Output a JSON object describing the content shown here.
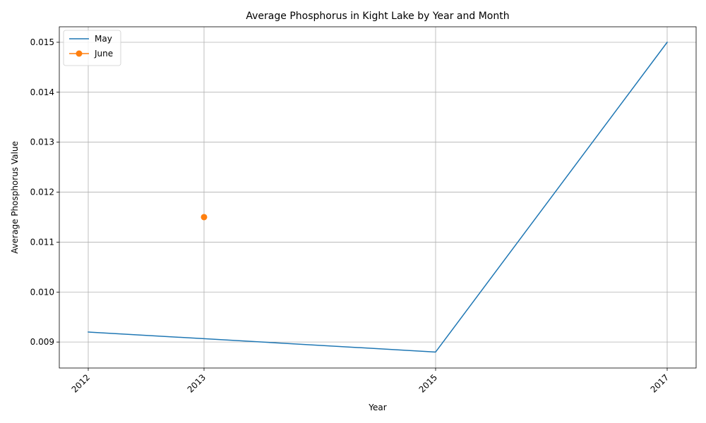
{
  "chart_data": {
    "type": "line",
    "title": "Average Phosphorus in Kight Lake by Year and Month",
    "xlabel": "Year",
    "ylabel": "Average Phosphorus Value",
    "x_ticks": [
      "2012",
      "2013",
      "2015",
      "2017"
    ],
    "y_ticks": [
      "0.009",
      "0.010",
      "0.011",
      "0.012",
      "0.013",
      "0.014",
      "0.015"
    ],
    "xlim": [
      2011.75,
      2017.25
    ],
    "ylim": [
      0.00848,
      0.01531
    ],
    "grid": true,
    "legend_position": "top-left",
    "series": [
      {
        "name": "May",
        "color": "#1f77b4",
        "marker": "none",
        "points": [
          {
            "x": 2012,
            "y": 0.0092
          },
          {
            "x": 2015,
            "y": 0.0088
          },
          {
            "x": 2017,
            "y": 0.015
          }
        ]
      },
      {
        "name": "June",
        "color": "#ff7f0e",
        "marker": "circle",
        "points": [
          {
            "x": 2013,
            "y": 0.0115
          }
        ]
      }
    ]
  }
}
